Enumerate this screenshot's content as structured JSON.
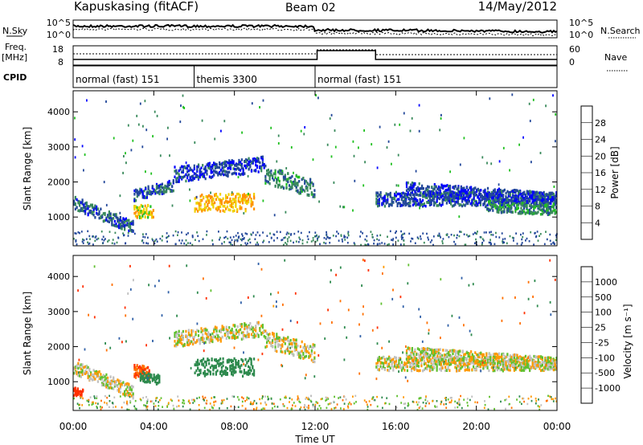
{
  "header": {
    "station": "Kapuskasing (fitACF)",
    "beam": "Beam 02",
    "date": "14/May/2012"
  },
  "noise_panel": {
    "left_label": "N.Sky",
    "right_label": "N.Search",
    "left_ticks": [
      "10^5",
      "10^0"
    ],
    "right_ticks": [
      "10^5",
      "10^0"
    ]
  },
  "freq_panel": {
    "left_label_1": "Freq.",
    "left_label_2": "[MHz]",
    "right_label": "Nave",
    "left_ticks": [
      "18",
      "8"
    ],
    "right_ticks": [
      "60",
      "0"
    ]
  },
  "cpid": {
    "label": "CPID",
    "segments": [
      {
        "text": "normal (fast) 151",
        "start_hour": 0,
        "end_hour": 6
      },
      {
        "text": "themis 3300",
        "start_hour": 6,
        "end_hour": 12
      },
      {
        "text": "normal (fast) 151",
        "start_hour": 12,
        "end_hour": 24
      }
    ]
  },
  "power_panel": {
    "ylabel": "Slant Range [km]",
    "yticks": [
      "1000",
      "2000",
      "3000",
      "4000"
    ],
    "colorbar_label": "Power [dB]",
    "colorbar_ticks": [
      "4",
      "8",
      "12",
      "16",
      "20",
      "24",
      "28"
    ],
    "colors": [
      "#0000ff",
      "#23489a",
      "#3a8a5c",
      "#20c020",
      "#f0d000",
      "#ff9000",
      "#ff4000",
      "#ff0000"
    ]
  },
  "velocity_panel": {
    "ylabel": "Slant Range [km]",
    "yticks": [
      "1000",
      "2000",
      "3000",
      "4000"
    ],
    "colorbar_label": "Velocity [m s⁻¹]",
    "colorbar_ticks": [
      "1000",
      "500",
      "100",
      "25",
      "-25",
      "-100",
      "-500",
      "-1000"
    ],
    "colors": [
      "#2040b0",
      "#3060a8",
      "#2e8a4e",
      "#60c030",
      "#c0c0c0",
      "#ff9900",
      "#ff7000",
      "#ff3000",
      "#ff0000"
    ]
  },
  "x_axis": {
    "label": "Time UT",
    "ticks": [
      "00:00",
      "04:00",
      "08:00",
      "12:00",
      "16:00",
      "20:00",
      "00:00"
    ]
  },
  "chart_data": [
    {
      "type": "heatmap",
      "title": "Power",
      "xlabel": "Time UT",
      "ylabel": "Slant Range [km]",
      "xlim": [
        0,
        24
      ],
      "ylim": [
        180,
        4600
      ],
      "colorbar": {
        "label": "Power [dB]",
        "range": [
          0,
          30
        ]
      },
      "bands": [
        {
          "t0": 0.0,
          "t1": 3.0,
          "r0": 1400,
          "r1": 700,
          "w": 180,
          "val": 7
        },
        {
          "t0": 3.0,
          "t1": 5.0,
          "r0": 1600,
          "r1": 1900,
          "w": 160,
          "val": 6
        },
        {
          "t0": 5.0,
          "t1": 9.5,
          "r0": 2200,
          "r1": 2500,
          "w": 220,
          "val": 5
        },
        {
          "t0": 6.0,
          "t1": 9.0,
          "r0": 1400,
          "r1": 1400,
          "w": 250,
          "val": 20
        },
        {
          "t0": 3.0,
          "t1": 4.0,
          "r0": 1150,
          "r1": 1150,
          "w": 180,
          "val": 18
        },
        {
          "t0": 9.5,
          "t1": 12.0,
          "r0": 2200,
          "r1": 1800,
          "w": 250,
          "val": 9
        },
        {
          "t0": 15.0,
          "t1": 24.0,
          "r0": 1500,
          "r1": 1500,
          "w": 200,
          "val": 6
        },
        {
          "t0": 16.5,
          "t1": 24.0,
          "r0": 1800,
          "r1": 1500,
          "w": 180,
          "val": 5
        },
        {
          "t0": 20.5,
          "t1": 24.0,
          "r0": 1300,
          "r1": 1200,
          "w": 160,
          "val": 10
        }
      ]
    },
    {
      "type": "heatmap",
      "title": "Velocity",
      "xlabel": "Time UT",
      "ylabel": "Slant Range [km]",
      "xlim": [
        0,
        24
      ],
      "ylim": [
        180,
        4600
      ],
      "colorbar": {
        "label": "Velocity [m s-1]",
        "range": [
          -1000,
          1000
        ]
      },
      "bands": [
        {
          "t0": 0.0,
          "t1": 3.0,
          "r0": 1400,
          "r1": 700,
          "w": 180,
          "val": 0
        },
        {
          "t0": 0.0,
          "t1": 0.5,
          "r0": 700,
          "r1": 700,
          "w": 120,
          "val": -800
        },
        {
          "t0": 3.0,
          "t1": 3.8,
          "r0": 1300,
          "r1": 1200,
          "w": 200,
          "val": -500
        },
        {
          "t0": 3.3,
          "t1": 4.3,
          "r0": 1150,
          "r1": 1050,
          "w": 150,
          "val": 200
        },
        {
          "t0": 5.0,
          "t1": 9.5,
          "r0": 2200,
          "r1": 2500,
          "w": 220,
          "val": 0
        },
        {
          "t0": 6.0,
          "t1": 9.0,
          "r0": 1400,
          "r1": 1400,
          "w": 250,
          "val": 300
        },
        {
          "t0": 9.5,
          "t1": 12.0,
          "r0": 2200,
          "r1": 1800,
          "w": 250,
          "val": 0
        },
        {
          "t0": 15.0,
          "t1": 24.0,
          "r0": 1500,
          "r1": 1500,
          "w": 200,
          "val": 0
        },
        {
          "t0": 16.5,
          "t1": 24.0,
          "r0": 1800,
          "r1": 1500,
          "w": 180,
          "val": 0
        }
      ]
    }
  ]
}
